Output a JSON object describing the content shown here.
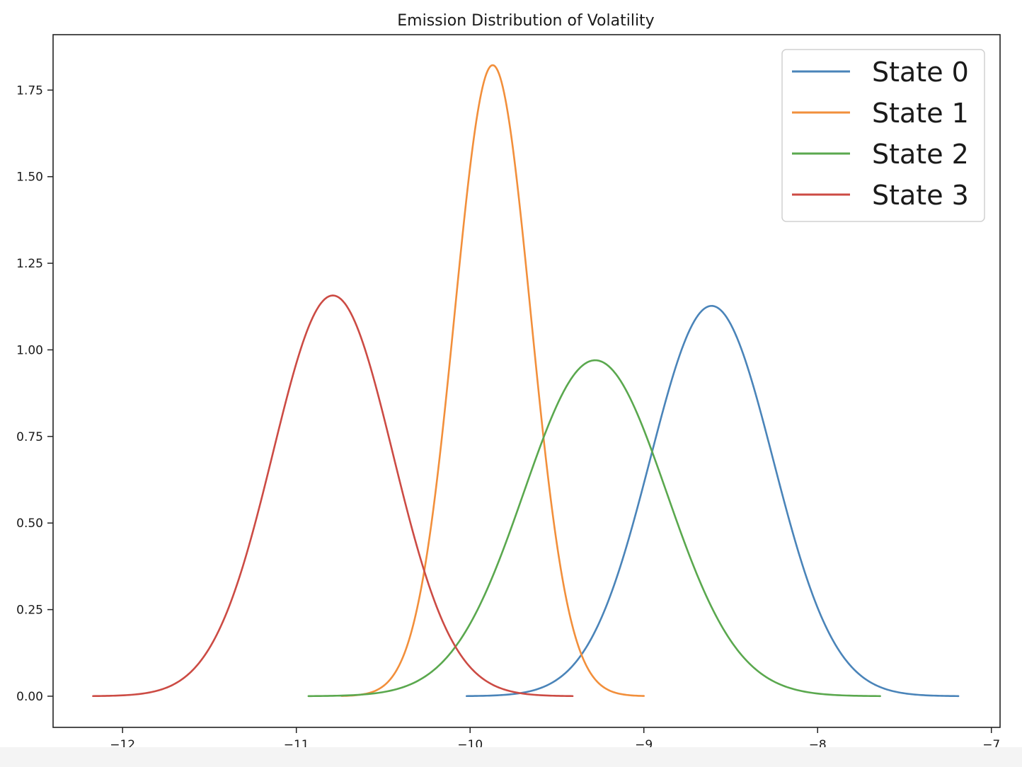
{
  "chart_data": {
    "type": "line",
    "title": "Emission Distribution of Volatility",
    "xlabel": "",
    "ylabel": "",
    "xlim": [
      -12.4,
      -6.95
    ],
    "ylim": [
      -0.09,
      1.91
    ],
    "x_ticks": [
      -12,
      -11,
      -10,
      -9,
      -8,
      -7
    ],
    "x_tick_labels": [
      "−12",
      "−11",
      "−10",
      "−9",
      "−8",
      "−7"
    ],
    "y_ticks": [
      0,
      0.25,
      0.5,
      0.75,
      1.0,
      1.25,
      1.5,
      1.75
    ],
    "y_tick_labels": [
      "0.00",
      "0.25",
      "0.50",
      "0.75",
      "1.00",
      "1.25",
      "1.50",
      "1.75"
    ],
    "grid": false,
    "legend_position": "top-right",
    "series": [
      {
        "name": "State 0",
        "color": "#4a84b9",
        "distribution": "normal",
        "mean": -8.61,
        "std": 0.354,
        "x_range": [
          -10.02,
          -7.19
        ],
        "peak": 1.127
      },
      {
        "name": "State 1",
        "color": "#f28f3b",
        "distribution": "normal",
        "mean": -9.87,
        "std": 0.219,
        "x_range": [
          -10.74,
          -9.0
        ],
        "peak": 1.822
      },
      {
        "name": "State 2",
        "color": "#5aa84e",
        "distribution": "normal",
        "mean": -9.28,
        "std": 0.411,
        "x_range": [
          -10.93,
          -7.64
        ],
        "peak": 0.97
      },
      {
        "name": "State 3",
        "color": "#cc4b44",
        "distribution": "normal",
        "mean": -10.79,
        "std": 0.345,
        "x_range": [
          -12.17,
          -9.41
        ],
        "peak": 1.157
      }
    ]
  }
}
